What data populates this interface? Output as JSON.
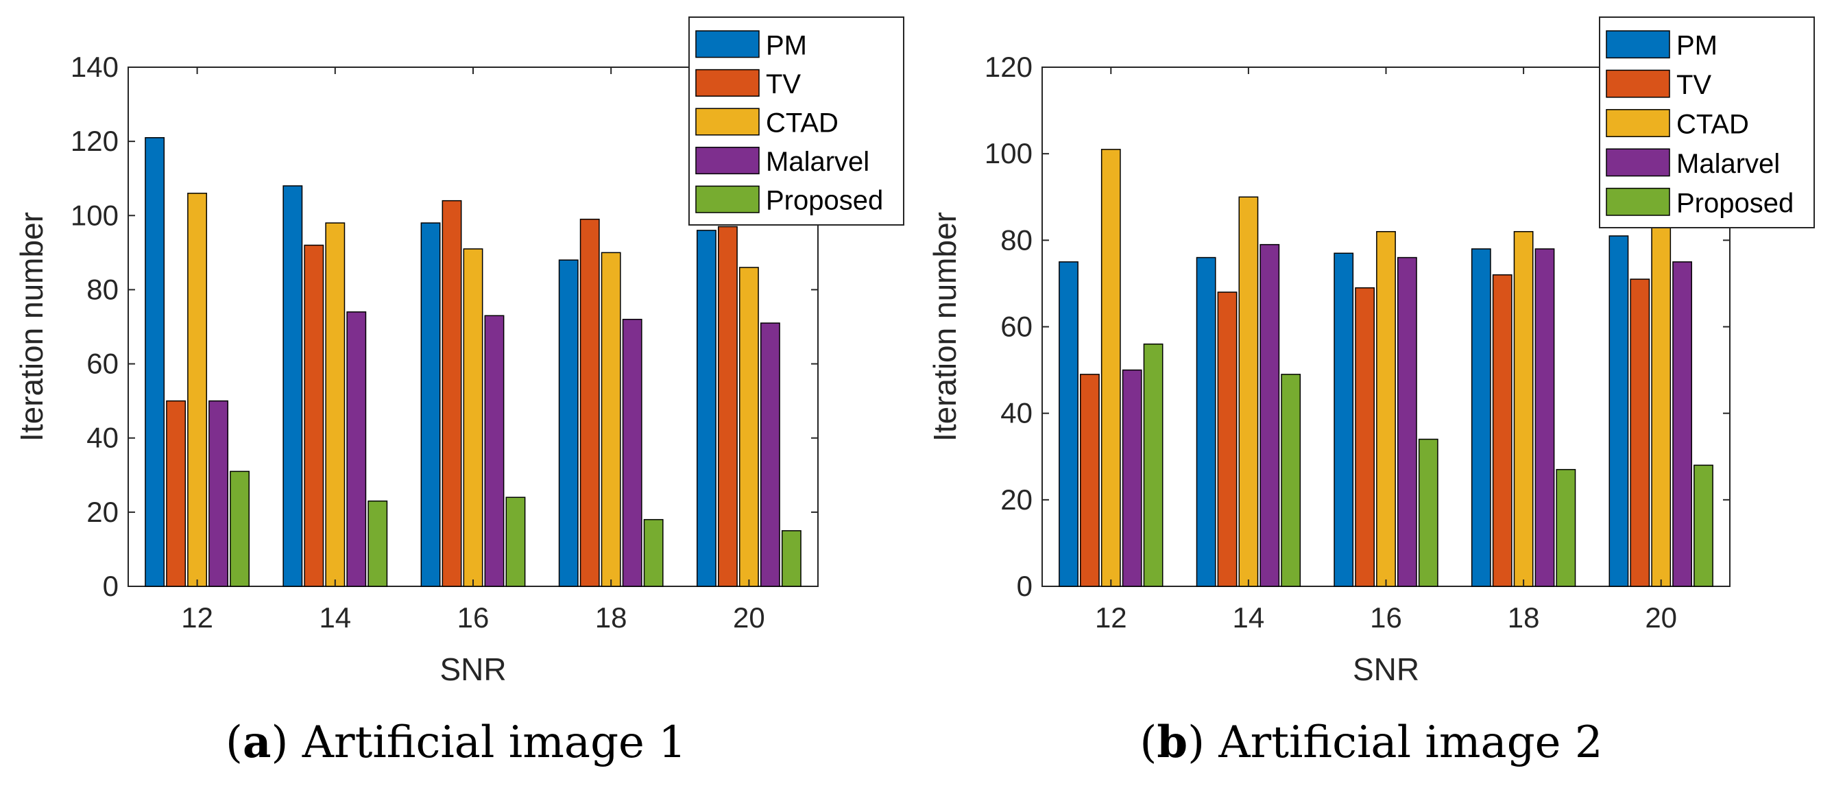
{
  "colors": {
    "PM": "#0072BD",
    "TV": "#D95319",
    "CTAD": "#EDB120",
    "Malarvel": "#7E2F8E",
    "Proposed": "#77AC30"
  },
  "chart_data": [
    {
      "type": "bar",
      "caption_letter": "(a)",
      "caption_text": "Artificial image 1",
      "xlabel": "SNR",
      "ylabel": "Iteration number",
      "categories": [
        "12",
        "14",
        "16",
        "18",
        "20"
      ],
      "ylim": [
        0,
        140
      ],
      "yticks": [
        0,
        20,
        40,
        60,
        80,
        100,
        120,
        140
      ],
      "legend_position": "top-right",
      "series": [
        {
          "name": "PM",
          "values": [
            121,
            108,
            98,
            88,
            96
          ]
        },
        {
          "name": "TV",
          "values": [
            50,
            92,
            104,
            99,
            97
          ]
        },
        {
          "name": "CTAD",
          "values": [
            106,
            98,
            91,
            90,
            86
          ]
        },
        {
          "name": "Malarvel",
          "values": [
            50,
            74,
            73,
            72,
            71
          ]
        },
        {
          "name": "Proposed",
          "values": [
            31,
            23,
            24,
            18,
            15
          ]
        }
      ]
    },
    {
      "type": "bar",
      "caption_letter": "(b)",
      "caption_text": "Artificial image 2",
      "xlabel": "SNR",
      "ylabel": "Iteration number",
      "categories": [
        "12",
        "14",
        "16",
        "18",
        "20"
      ],
      "ylim": [
        0,
        120
      ],
      "yticks": [
        0,
        20,
        40,
        60,
        80,
        100,
        120
      ],
      "legend_position": "top-right",
      "series": [
        {
          "name": "PM",
          "values": [
            75,
            76,
            77,
            78,
            81
          ]
        },
        {
          "name": "TV",
          "values": [
            49,
            68,
            69,
            72,
            71
          ]
        },
        {
          "name": "CTAD",
          "values": [
            101,
            90,
            82,
            82,
            84
          ]
        },
        {
          "name": "Malarvel",
          "values": [
            50,
            79,
            76,
            78,
            75
          ]
        },
        {
          "name": "Proposed",
          "values": [
            56,
            49,
            34,
            27,
            28
          ]
        }
      ]
    }
  ]
}
